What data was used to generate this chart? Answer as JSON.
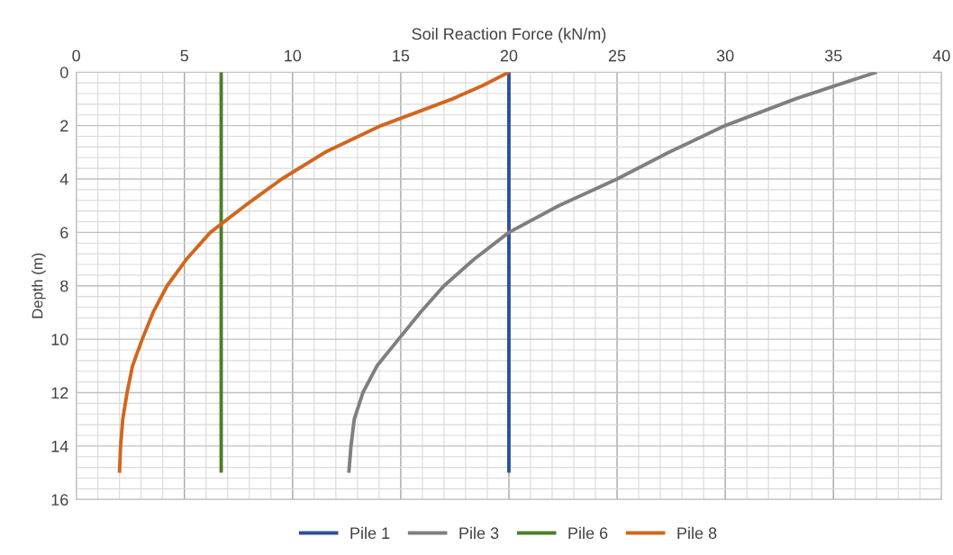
{
  "chart_data": {
    "type": "line",
    "xlabel": "Soil Reaction Force (kN/m)",
    "ylabel": "Depth (m)",
    "xlim": [
      0,
      40
    ],
    "xticks": [
      0,
      5,
      10,
      15,
      20,
      25,
      30,
      35,
      40
    ],
    "ylim": [
      16,
      0
    ],
    "yticks": [
      0,
      2,
      4,
      6,
      8,
      10,
      12,
      14,
      16
    ],
    "grid": true,
    "legend": "bottom",
    "marker": "none",
    "line_style": "solid",
    "series": [
      {
        "name": "Pile 1",
        "color": "#2f4f9c",
        "x": [
          20,
          20
        ],
        "values": [
          0,
          15
        ]
      },
      {
        "name": "Pile 3",
        "color": "#7f7f7f",
        "x": [
          37,
          35.1,
          33.25,
          30.0,
          27.4,
          25.0,
          22.3,
          20.0,
          18.4,
          17.0,
          15.9,
          14.9,
          13.9,
          13.25,
          12.85,
          12.7,
          12.6
        ],
        "values": [
          0,
          0.5,
          1,
          2,
          3,
          4,
          5,
          6,
          7,
          8,
          9,
          10,
          11,
          12,
          13,
          14,
          15
        ]
      },
      {
        "name": "Pile 6",
        "color": "#4c7f2b",
        "x": [
          6.7,
          6.7
        ],
        "values": [
          0,
          15
        ]
      },
      {
        "name": "Pile 8",
        "color": "#d2661e",
        "x": [
          20,
          18.8,
          17.4,
          14.1,
          11.5,
          9.5,
          7.8,
          6.2,
          5.1,
          4.2,
          3.55,
          3.05,
          2.6,
          2.35,
          2.15,
          2.05,
          2.0
        ],
        "values": [
          0,
          0.5,
          1,
          2,
          3,
          4,
          5,
          6,
          7,
          8,
          9,
          10,
          11,
          12,
          13,
          14,
          15
        ]
      }
    ]
  }
}
